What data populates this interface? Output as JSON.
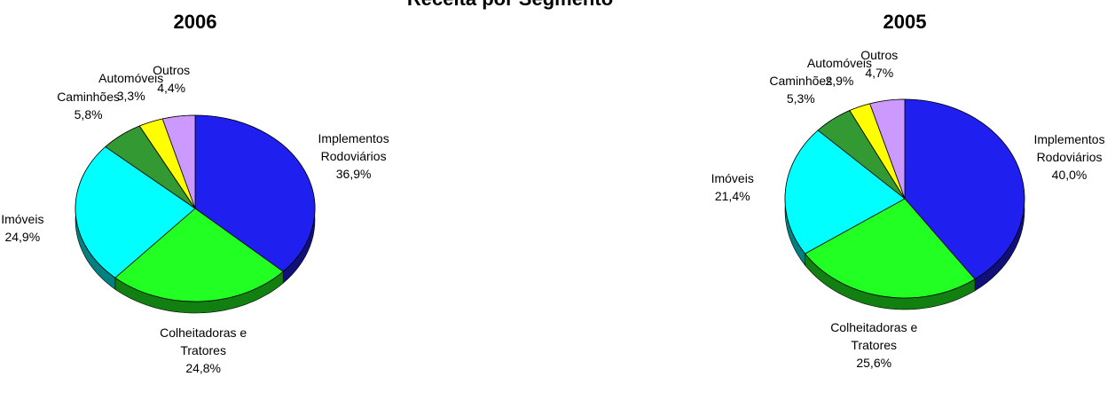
{
  "title": "Receita por Segmento",
  "chart_data": [
    {
      "type": "pie",
      "title": "2006",
      "categories": [
        "Implementos Rodoviários",
        "Colheitadoras e Tratores",
        "Imóveis",
        "Caminhões",
        "Automóveis",
        "Outros"
      ],
      "values": [
        36.9,
        24.8,
        24.9,
        5.8,
        3.3,
        4.4
      ],
      "value_labels": [
        "36,9%",
        "24,8%",
        "24,9%",
        "5,8%",
        "3,3%",
        "4,4%"
      ],
      "colors": [
        "#1f1ff0",
        "#22ff22",
        "#00ffff",
        "#339933",
        "#ffff00",
        "#cc99ff"
      ]
    },
    {
      "type": "pie",
      "title": "2005",
      "categories": [
        "Implementos Rodoviários",
        "Colheitadoras e Tratores",
        "Imóveis",
        "Caminhões",
        "Automóveis",
        "Outros"
      ],
      "values": [
        40.0,
        25.6,
        21.4,
        5.3,
        2.9,
        4.7
      ],
      "value_labels": [
        "40,0%",
        "25,6%",
        "21,4%",
        "5,3%",
        "2,9%",
        "4,7%"
      ],
      "colors": [
        "#1f1ff0",
        "#22ff22",
        "#00ffff",
        "#339933",
        "#ffff00",
        "#cc99ff"
      ]
    }
  ]
}
